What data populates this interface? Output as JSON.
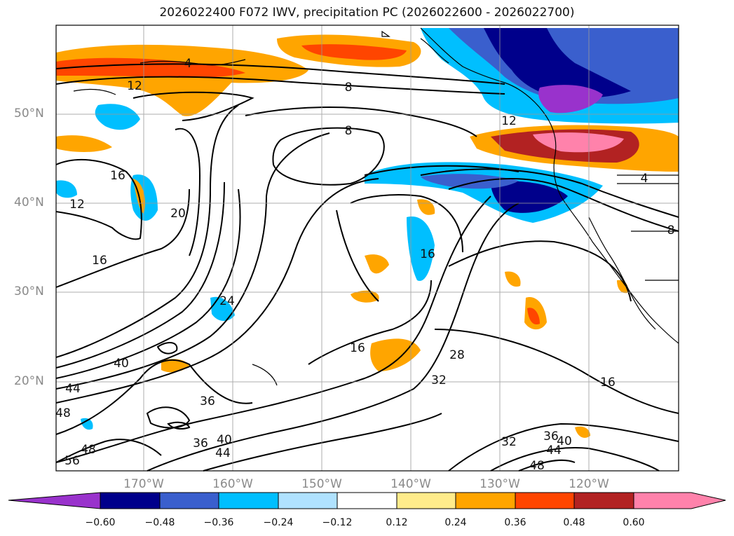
{
  "title": "2026022400 F072 IWV, precipitation PC (2026022600 - 2026022700)",
  "lat_labels": [
    "50°N",
    "40°N",
    "30°N",
    "20°N"
  ],
  "lon_labels": [
    "170°W",
    "160°W",
    "150°W",
    "140°W",
    "130°W",
    "120°W"
  ],
  "colorbar": {
    "ticks": [
      "−0.60",
      "−0.48",
      "−0.36",
      "−0.24",
      "−0.12",
      "0.12",
      "0.24",
      "0.36",
      "0.48",
      "0.60"
    ],
    "colors": [
      "#9932cc",
      "#00008b",
      "#3a5fcd",
      "#00bfff",
      "#b0e2ff",
      "#ffffff",
      "#ffec8b",
      "#ffa500",
      "#ff4500",
      "#b22222",
      "#ff82ab",
      "#ff82ab"
    ]
  },
  "contour_labels": [
    "4",
    "12",
    "8",
    "8",
    "16",
    "12",
    "20",
    "16",
    "24",
    "16",
    "16",
    "28",
    "32",
    "40",
    "44",
    "48",
    "36",
    "36",
    "40",
    "44",
    "56",
    "48",
    "32",
    "36",
    "40",
    "44",
    "48",
    "16",
    "12",
    "4",
    "8"
  ],
  "colors": {
    "coast": "#000000",
    "grid": "#999999"
  }
}
